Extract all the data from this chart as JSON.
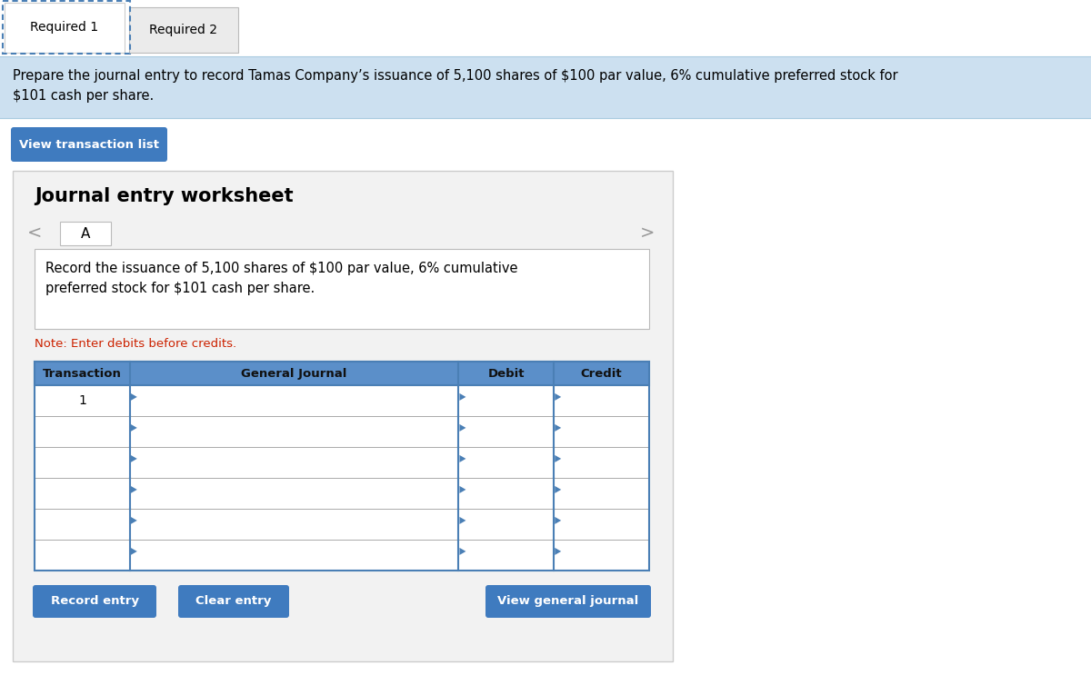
{
  "bg_color": "#ffffff",
  "tab_required1_text": "Required 1",
  "tab_required2_text": "Required 2",
  "info_bg_color": "#cce0f0",
  "info_text_line1": "Prepare the journal entry to record Tamas Company’s issuance of 5,100 shares of $100 par value, 6% cumulative preferred stock for",
  "info_text_line2": "$101 cash per share.",
  "info_text_color": "#000000",
  "btn_color": "#3f7bbf",
  "view_transaction_btn_text": "View transaction list",
  "worksheet_bg_color": "#f2f2f2",
  "worksheet_border_color": "#cccccc",
  "worksheet_title": "Journal entry worksheet",
  "tab_a_text": "A",
  "nav_left": "<",
  "nav_right": ">",
  "description_text_line1": "Record the issuance of 5,100 shares of $100 par value, 6% cumulative",
  "description_text_line2": "preferred stock for $101 cash per share.",
  "note_text": "Note: Enter debits before credits.",
  "note_color": "#cc2200",
  "table_header_bg": "#5b8fc9",
  "table_border_color": "#4a7fb5",
  "table_header_cols": [
    "Transaction",
    "General Journal",
    "Debit",
    "Credit"
  ],
  "table_num_rows": 6,
  "transaction_row1_text": "1",
  "record_entry_btn": "Record entry",
  "clear_entry_btn": "Clear entry",
  "view_journal_btn": "View general journal",
  "arrow_color": "#4a7fb5",
  "dotted_color": "#4a7fb5"
}
